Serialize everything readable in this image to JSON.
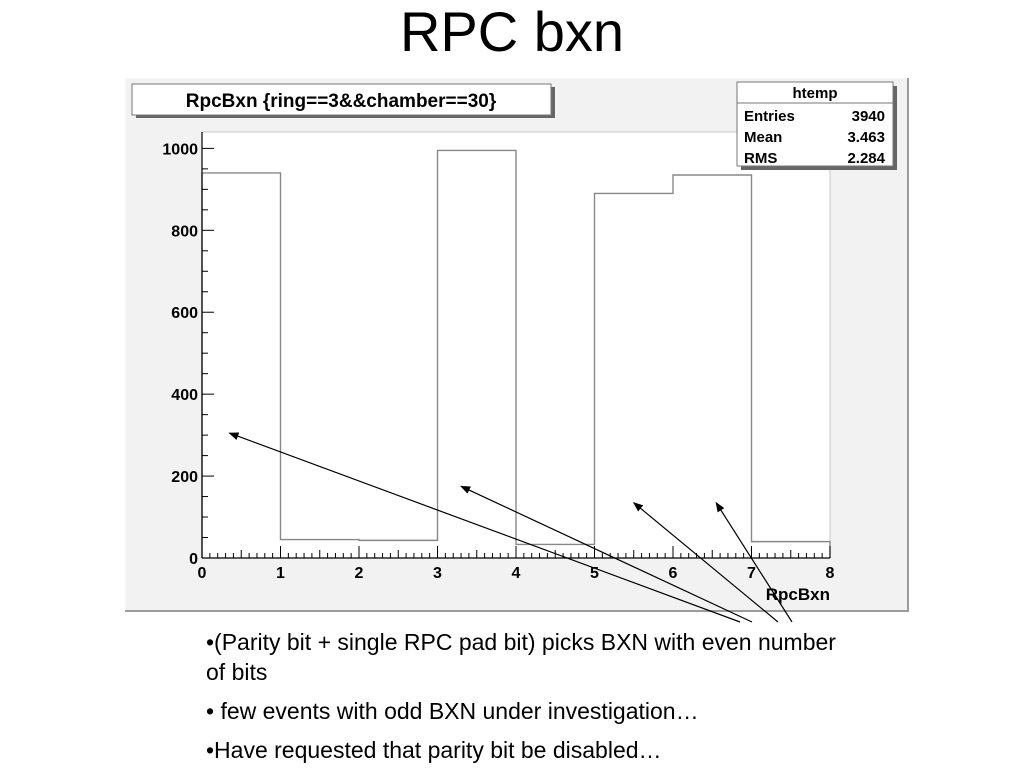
{
  "slide": {
    "title": "RPC bxn",
    "bullets": [
      "•(Parity bit + single RPC pad bit) picks BXN with even number of bits",
      "• few events with odd BXN under investigation…",
      "•Have requested that parity bit be disabled…"
    ]
  },
  "chart_data": {
    "type": "bar",
    "title": "RpcBxn {ring==3&&chamber==30}",
    "xlabel": "RpcBxn",
    "ylabel": "",
    "bin_edges": [
      0,
      1,
      2,
      3,
      4,
      5,
      6,
      7,
      8
    ],
    "values": [
      940,
      45,
      43,
      995,
      33,
      890,
      935,
      40
    ],
    "xlim": [
      0,
      8
    ],
    "ylim": [
      0,
      1040
    ],
    "x_ticks": [
      0,
      1,
      2,
      3,
      4,
      5,
      6,
      7,
      8
    ],
    "y_ticks": [
      0,
      200,
      400,
      600,
      800,
      1000
    ],
    "stats_box": {
      "name": "htemp",
      "rows": [
        {
          "label": "Entries",
          "value": "3940"
        },
        {
          "label": "Mean",
          "value": "3.463"
        },
        {
          "label": "RMS",
          "value": "2.284"
        }
      ],
      "placement": "top-right"
    },
    "annotation_arrows": [
      {
        "target": [
          0.35,
          305
        ]
      },
      {
        "target": [
          3.3,
          175
        ]
      },
      {
        "target": [
          5.5,
          135
        ]
      },
      {
        "target": [
          6.55,
          135
        ]
      }
    ],
    "colors": {
      "frame": "#f2f2f2",
      "plot_bg": "#ffffff",
      "histogram_line": "#888888",
      "axis": "#000000"
    }
  }
}
